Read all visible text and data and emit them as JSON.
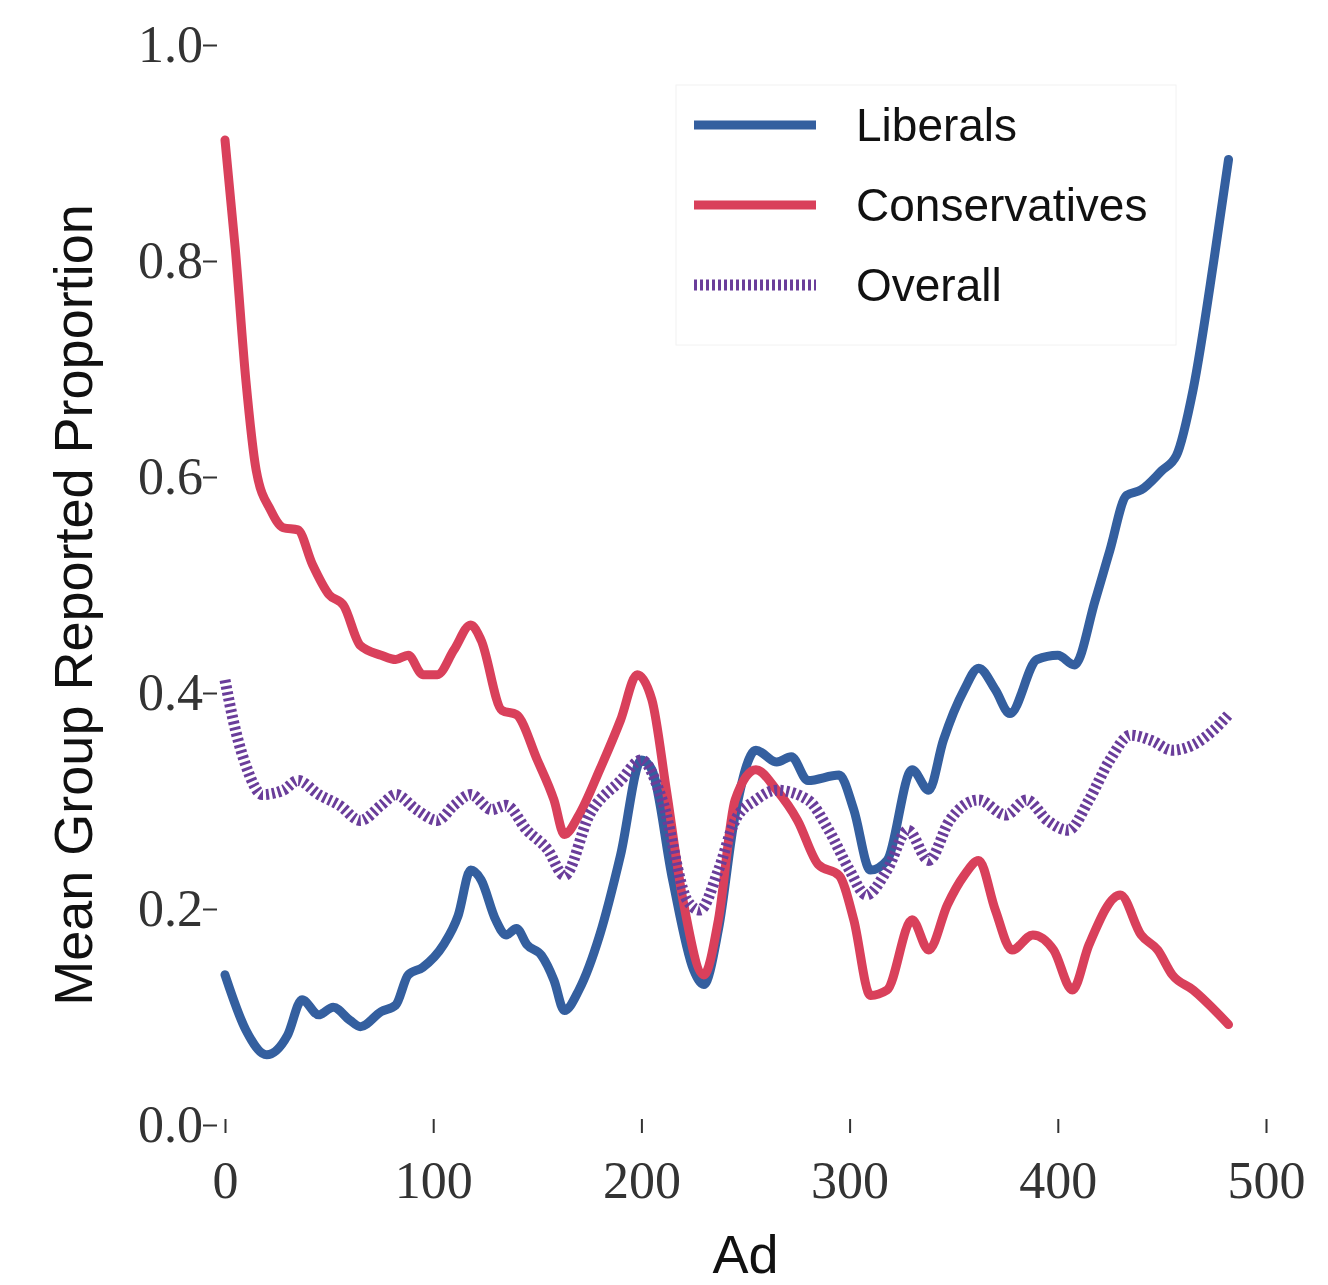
{
  "chart_data": {
    "type": "line",
    "xlabel": "Ad",
    "ylabel": "Mean Group Reported Proportion",
    "xlim": [
      0,
      500
    ],
    "xticks": [
      0,
      100,
      200,
      300,
      400,
      500
    ],
    "ylim": [
      0,
      1
    ],
    "yticks": [
      {
        "value": 0,
        "label": "0.0"
      },
      {
        "value": 0.2,
        "label": "0.2"
      },
      {
        "value": 0.4,
        "label": "0.4"
      },
      {
        "value": 0.6,
        "label": "0.6"
      },
      {
        "value": 0.8,
        "label": "0.8"
      },
      {
        "value": 1,
        "label": "1.0"
      }
    ],
    "grid": false,
    "legend": "top right",
    "marker": "none",
    "series": [
      {
        "name": "Liberals",
        "color": "#345f9f",
        "line_style": "solid",
        "x": [
          0,
          10,
          20,
          30,
          37,
          45,
          52,
          60,
          65,
          75,
          82,
          88,
          95,
          105,
          112,
          118,
          123,
          130,
          135,
          140,
          145,
          152,
          158,
          163,
          170,
          180,
          190,
          200,
          205,
          215,
          225,
          230,
          237,
          245,
          255,
          265,
          272,
          280,
          295,
          302,
          310,
          318,
          330,
          338,
          345,
          355,
          362,
          370,
          377,
          390,
          400,
          408,
          418,
          425,
          433,
          440,
          450,
          457,
          465,
          475,
          482
        ],
        "values": [
          0.139,
          0.088,
          0.065,
          0.083,
          0.116,
          0.102,
          0.109,
          0.097,
          0.091,
          0.105,
          0.111,
          0.139,
          0.146,
          0.167,
          0.194,
          0.236,
          0.227,
          0.19,
          0.176,
          0.182,
          0.167,
          0.157,
          0.134,
          0.106,
          0.125,
          0.176,
          0.25,
          0.338,
          0.329,
          0.227,
          0.144,
          0.13,
          0.181,
          0.287,
          0.347,
          0.336,
          0.341,
          0.319,
          0.324,
          0.292,
          0.236,
          0.245,
          0.329,
          0.31,
          0.356,
          0.403,
          0.423,
          0.403,
          0.381,
          0.431,
          0.435,
          0.426,
          0.486,
          0.532,
          0.583,
          0.588,
          0.606,
          0.62,
          0.681,
          0.801,
          0.894
        ]
      },
      {
        "name": "Conservatives",
        "color": "#d9405b",
        "line_style": "solid",
        "x": [
          0,
          5,
          10,
          15,
          22,
          28,
          35,
          42,
          50,
          57,
          65,
          75,
          82,
          88,
          95,
          102,
          110,
          118,
          123,
          133,
          140,
          150,
          158,
          163,
          170,
          180,
          190,
          198,
          205,
          212,
          220,
          230,
          237,
          245,
          255,
          265,
          275,
          285,
          295,
          302,
          310,
          318,
          330,
          338,
          347,
          355,
          362,
          370,
          378,
          388,
          398,
          407,
          415,
          430,
          440,
          448,
          455,
          465,
          482
        ],
        "values": [
          0.912,
          0.81,
          0.69,
          0.606,
          0.569,
          0.553,
          0.551,
          0.519,
          0.491,
          0.481,
          0.444,
          0.435,
          0.431,
          0.435,
          0.417,
          0.417,
          0.44,
          0.463,
          0.449,
          0.384,
          0.38,
          0.338,
          0.301,
          0.269,
          0.287,
          0.329,
          0.375,
          0.417,
          0.394,
          0.31,
          0.208,
          0.139,
          0.19,
          0.301,
          0.329,
          0.31,
          0.282,
          0.241,
          0.231,
          0.19,
          0.12,
          0.125,
          0.19,
          0.162,
          0.204,
          0.231,
          0.245,
          0.199,
          0.162,
          0.176,
          0.162,
          0.125,
          0.167,
          0.213,
          0.176,
          0.162,
          0.139,
          0.125,
          0.093
        ]
      },
      {
        "name": "Overall",
        "color": "#6a3d9a",
        "line_style": "dotted",
        "x": [
          0,
          5,
          10,
          18,
          28,
          35,
          45,
          55,
          65,
          75,
          82,
          92,
          102,
          110,
          118,
          128,
          135,
          145,
          155,
          163,
          175,
          190,
          200,
          210,
          222,
          228,
          237,
          245,
          255,
          265,
          280,
          290,
          300,
          308,
          318,
          328,
          338,
          348,
          362,
          375,
          385,
          395,
          405,
          415,
          425,
          435,
          445,
          455,
          465,
          475,
          482
        ],
        "values": [
          0.412,
          0.366,
          0.333,
          0.306,
          0.31,
          0.319,
          0.306,
          0.296,
          0.282,
          0.296,
          0.306,
          0.292,
          0.282,
          0.296,
          0.306,
          0.292,
          0.296,
          0.273,
          0.255,
          0.231,
          0.287,
          0.319,
          0.338,
          0.301,
          0.208,
          0.199,
          0.236,
          0.282,
          0.301,
          0.31,
          0.301,
          0.273,
          0.236,
          0.213,
          0.236,
          0.273,
          0.245,
          0.282,
          0.301,
          0.287,
          0.301,
          0.282,
          0.273,
          0.301,
          0.338,
          0.361,
          0.356,
          0.347,
          0.352,
          0.366,
          0.38
        ]
      }
    ]
  }
}
